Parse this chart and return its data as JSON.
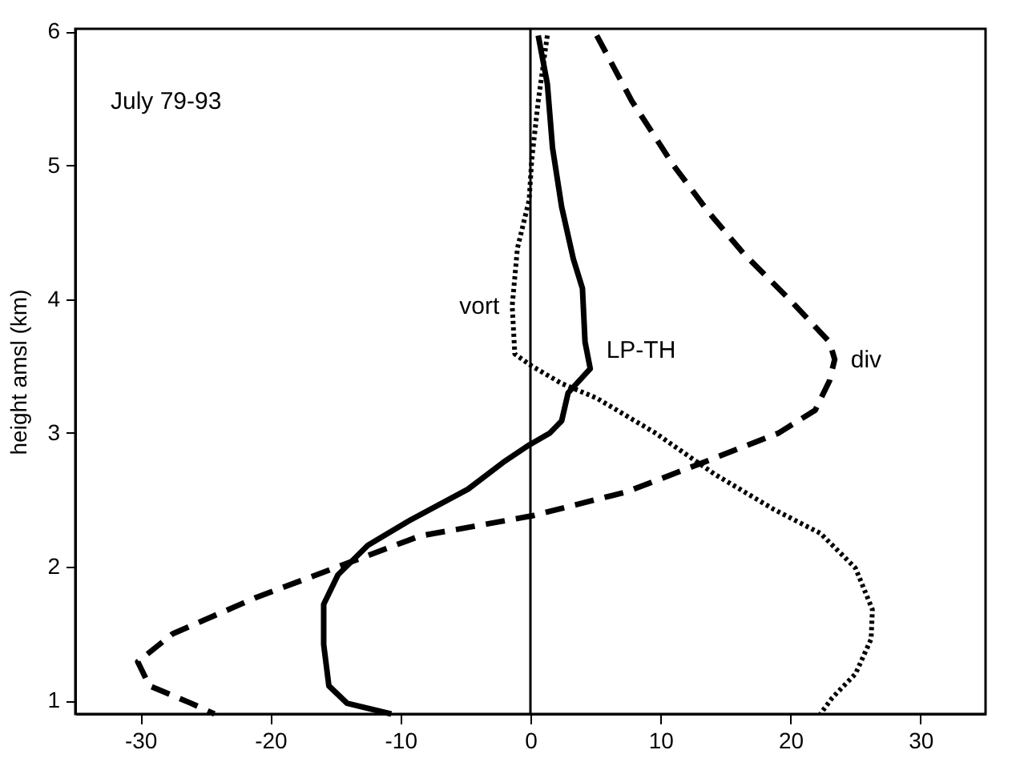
{
  "chart_data": {
    "type": "line",
    "ylabel": "height amsl (km)",
    "annotations": [
      "July 79-93"
    ],
    "xlim": [
      -35,
      35
    ],
    "xticks": [
      -30,
      -20,
      -10,
      0,
      10,
      20,
      30
    ],
    "ylim": [
      0.9,
      6.02
    ],
    "yticks": [
      1,
      2,
      3,
      4,
      5,
      6
    ],
    "grid": false,
    "marker": "none",
    "ref_lines": [
      {
        "axis": "x",
        "value": 0,
        "color": "#000000",
        "line_style": "solid"
      }
    ],
    "series": [
      {
        "name": "vort",
        "color": "#000000",
        "line_style": "dotted",
        "x": [
          1.3,
          0.6,
          0.1,
          -0.1,
          -1.0,
          -1.4,
          -1.2,
          0.1,
          2.4,
          5.1,
          9.6,
          14.2,
          18.7,
          22.3,
          25.0,
          26.3,
          26.2,
          25.0,
          23.2,
          22.3
        ],
        "values": [
          5.97,
          5.48,
          5.04,
          4.74,
          4.38,
          3.95,
          3.59,
          3.5,
          3.37,
          3.26,
          3.0,
          2.69,
          2.43,
          2.25,
          1.99,
          1.68,
          1.46,
          1.2,
          1.02,
          0.9
        ]
      },
      {
        "name": "LP-TH",
        "color": "#000000",
        "line_style": "solid",
        "x": [
          0.6,
          1.3,
          1.7,
          2.4,
          3.3,
          4.0,
          4.2,
          4.6,
          2.9,
          2.4,
          1.5,
          -0.1,
          -2.1,
          -4.8,
          -9.4,
          -12.5,
          -14.8,
          -15.9,
          -15.9,
          -15.5,
          -14.1,
          -10.7
        ],
        "values": [
          5.97,
          5.61,
          5.13,
          4.69,
          4.3,
          4.08,
          3.68,
          3.48,
          3.3,
          3.09,
          3.0,
          2.91,
          2.78,
          2.58,
          2.34,
          2.16,
          1.94,
          1.72,
          1.42,
          1.11,
          0.98,
          0.9
        ]
      },
      {
        "name": "div",
        "color": "#000000",
        "line_style": "dashed",
        "x": [
          5.1,
          7.8,
          11.0,
          13.7,
          16.4,
          20.0,
          23.0,
          23.4,
          23.0,
          21.9,
          19.1,
          13.3,
          7.4,
          0.1,
          -8.5,
          -14.8,
          -21.1,
          -27.5,
          -30.2,
          -29.3,
          -26.1,
          -24.3
        ],
        "values": [
          5.97,
          5.48,
          5.0,
          4.65,
          4.34,
          3.99,
          3.68,
          3.55,
          3.39,
          3.17,
          3.0,
          2.78,
          2.56,
          2.38,
          2.23,
          2.0,
          1.77,
          1.5,
          1.29,
          1.11,
          0.98,
          0.9
        ]
      }
    ]
  }
}
